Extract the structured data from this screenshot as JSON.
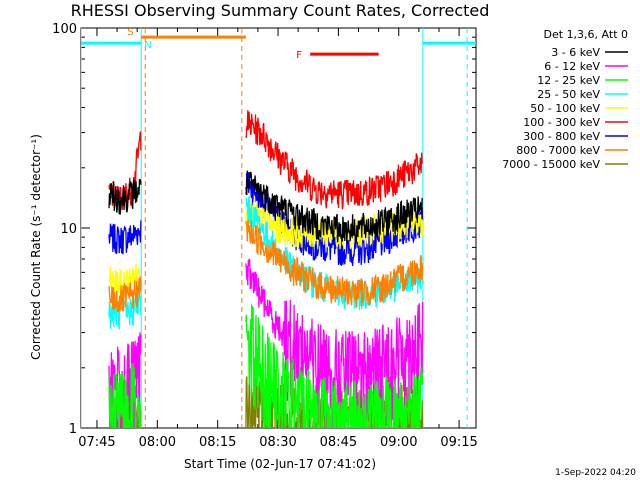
{
  "chart_data": {
    "type": "line",
    "title": "RHESSI Observing Summary Count Rates, Corrected",
    "xlabel": "Start Time (02-Jun-17 07:41:02)",
    "ylabel": "Corrected Count Rate (s⁻¹ detector⁻¹)",
    "y_scale": "log",
    "ylim": [
      1,
      100
    ],
    "xlim": [
      "07:41:02",
      "09:19:12"
    ],
    "x_ticks": [
      "07:45",
      "08:00",
      "08:15",
      "08:30",
      "08:45",
      "09:00",
      "09:15"
    ],
    "x_tick_minutes": [
      465,
      480,
      495,
      510,
      525,
      540,
      555
    ],
    "y_ticks": [
      {
        "value": 1,
        "label": "1"
      },
      {
        "value": 10,
        "label": "10"
      },
      {
        "value": 100,
        "label": "100"
      }
    ],
    "legend_title": "Det 1,3,6, Att 0",
    "legend_position": "top-right",
    "footer": "1-Sep-2022 04:20",
    "data_segments": [
      {
        "start": "07:48",
        "end": "07:56"
      },
      {
        "start": "08:22",
        "end": "09:06"
      }
    ],
    "series": [
      {
        "name": "3 - 6 keV",
        "color": "#000000",
        "segments": [
          {
            "x": [
              "07:48",
              "07:51",
              "07:54",
              "07:56"
            ],
            "y": [
              15,
              14,
              15,
              16
            ]
          },
          {
            "x": [
              "08:22",
              "08:26",
              "08:30",
              "08:35",
              "08:40",
              "08:45",
              "08:50",
              "08:55",
              "09:00",
              "09:06"
            ],
            "y": [
              17,
              15,
              13,
              11.5,
              10.5,
              10,
              10,
              10.5,
              11.5,
              12.5
            ]
          }
        ]
      },
      {
        "name": "6 - 12 keV",
        "color": "#ff00ff",
        "segments": [
          {
            "x": [
              "07:48",
              "07:51",
              "07:54",
              "07:56"
            ],
            "y": [
              1.8,
              1.6,
              1.8,
              2.0
            ]
          },
          {
            "x": [
              "08:22",
              "08:26",
              "08:30",
              "08:35",
              "08:40",
              "08:45",
              "08:50",
              "08:55",
              "09:00",
              "09:06"
            ],
            "y": [
              6.5,
              4.5,
              3.2,
              2.6,
              2.2,
              2.0,
              2.0,
              2.1,
              2.4,
              2.8
            ]
          }
        ]
      },
      {
        "name": "12 - 25 keV",
        "color": "#00ff00",
        "segments": [
          {
            "x": [
              "07:48",
              "07:51",
              "07:54",
              "07:56"
            ],
            "y": [
              1.3,
              1.2,
              1.4,
              1.6
            ]
          },
          {
            "x": [
              "08:22",
              "08:26",
              "08:30",
              "08:35",
              "08:40",
              "08:45",
              "08:50",
              "08:55",
              "09:00",
              "09:06"
            ],
            "y": [
              3.2,
              2.2,
              1.6,
              1.4,
              1.25,
              1.15,
              1.1,
              1.15,
              1.2,
              1.3
            ]
          }
        ]
      },
      {
        "name": "25 - 50 keV",
        "color": "#00ffff",
        "segments": [
          {
            "x": [
              "07:48",
              "07:51",
              "07:54",
              "07:56"
            ],
            "y": [
              3.8,
              3.7,
              3.9,
              4.2
            ]
          },
          {
            "x": [
              "08:22",
              "08:26",
              "08:30",
              "08:35",
              "08:40",
              "08:45",
              "08:50",
              "08:55",
              "09:00",
              "09:06"
            ],
            "y": [
              13,
              10,
              7.5,
              6.0,
              5.2,
              4.8,
              4.7,
              4.8,
              5.2,
              5.8
            ]
          }
        ]
      },
      {
        "name": "50 - 100 keV",
        "color": "#ffff00",
        "segments": [
          {
            "x": [
              "07:48",
              "07:51",
              "07:54",
              "07:56"
            ],
            "y": [
              5.5,
              5.3,
              5.6,
              6.0
            ]
          },
          {
            "x": [
              "08:22",
              "08:26",
              "08:30",
              "08:35",
              "08:40",
              "08:45",
              "08:50",
              "08:55",
              "09:00",
              "09:06"
            ],
            "y": [
              12,
              11,
              10,
              9.5,
              9.5,
              9.5,
              9.5,
              10,
              10.5,
              11
            ]
          }
        ]
      },
      {
        "name": "100 - 300 keV",
        "color": "#ff0000",
        "segments": [
          {
            "x": [
              "07:48",
              "07:51",
              "07:54",
              "07:56"
            ],
            "y": [
              15,
              14,
              16,
              30
            ]
          },
          {
            "x": [
              "08:22",
              "08:26",
              "08:30",
              "08:35",
              "08:40",
              "08:45",
              "08:50",
              "08:55",
              "09:00",
              "09:06"
            ],
            "y": [
              34,
              30,
              23,
              18,
              15.5,
              15,
              15,
              16,
              18,
              21
            ]
          }
        ]
      },
      {
        "name": "300 - 800 keV",
        "color": "#0000ff",
        "segments": [
          {
            "x": [
              "07:48",
              "07:51",
              "07:54",
              "07:56"
            ],
            "y": [
              9,
              8.8,
              9.2,
              10
            ]
          },
          {
            "x": [
              "08:22",
              "08:26",
              "08:30",
              "08:35",
              "08:40",
              "08:45",
              "08:50",
              "08:55",
              "09:00",
              "09:06"
            ],
            "y": [
              17,
              14,
              11,
              9,
              8.2,
              7.8,
              7.8,
              8.3,
              9.5,
              11
            ]
          }
        ]
      },
      {
        "name": "800 - 7000 keV",
        "color": "#ff8000",
        "segments": [
          {
            "x": [
              "07:48",
              "07:51",
              "07:54",
              "07:56"
            ],
            "y": [
              4.5,
              4.4,
              4.6,
              5
            ]
          },
          {
            "x": [
              "08:22",
              "08:26",
              "08:30",
              "08:35",
              "08:40",
              "08:45",
              "08:50",
              "08:55",
              "09:00",
              "09:06"
            ],
            "y": [
              10,
              8.5,
              7,
              6,
              5.2,
              4.9,
              4.8,
              5.0,
              5.6,
              6.5
            ]
          }
        ]
      },
      {
        "name": "7000 - 15000 keV",
        "color": "#808000",
        "segments": [
          {
            "x": [
              "07:48",
              "07:51",
              "07:54",
              "07:56"
            ],
            "y": [
              1.05,
              1.04,
              1.06,
              1.08
            ]
          },
          {
            "x": [
              "08:22",
              "08:26",
              "08:30",
              "08:35",
              "08:40",
              "08:45",
              "08:50",
              "08:55",
              "09:00",
              "09:06"
            ],
            "y": [
              1.2,
              1.15,
              1.1,
              1.08,
              1.06,
              1.05,
              1.05,
              1.06,
              1.08,
              1.1
            ]
          }
        ]
      }
    ],
    "flags": [
      {
        "label": "S",
        "color": "#ff8000",
        "start": "07:56",
        "end": "08:22",
        "y": 90
      },
      {
        "label": "N",
        "color": "#00ffff",
        "start": "07:41:02",
        "end": "07:56",
        "y": 84
      },
      {
        "label": "",
        "color": "#00ffff",
        "start": "09:06",
        "end": "09:19:12",
        "y": 84
      },
      {
        "label": "F",
        "color": "#ff0000",
        "start": "08:38",
        "end": "08:55",
        "y": 74
      }
    ],
    "vertical_markers": [
      {
        "time": "07:41:02",
        "color": "#00ffff",
        "style": "solid"
      },
      {
        "time": "07:56",
        "color": "#00ffff",
        "style": "solid"
      },
      {
        "time": "09:06",
        "color": "#00ffff",
        "style": "solid"
      },
      {
        "time": "09:17",
        "color": "#00ffff",
        "style": "dashed"
      },
      {
        "time": "07:57",
        "color": "#ff8000",
        "style": "dashed"
      },
      {
        "time": "08:21",
        "color": "#ff8000",
        "style": "dashed"
      }
    ]
  }
}
